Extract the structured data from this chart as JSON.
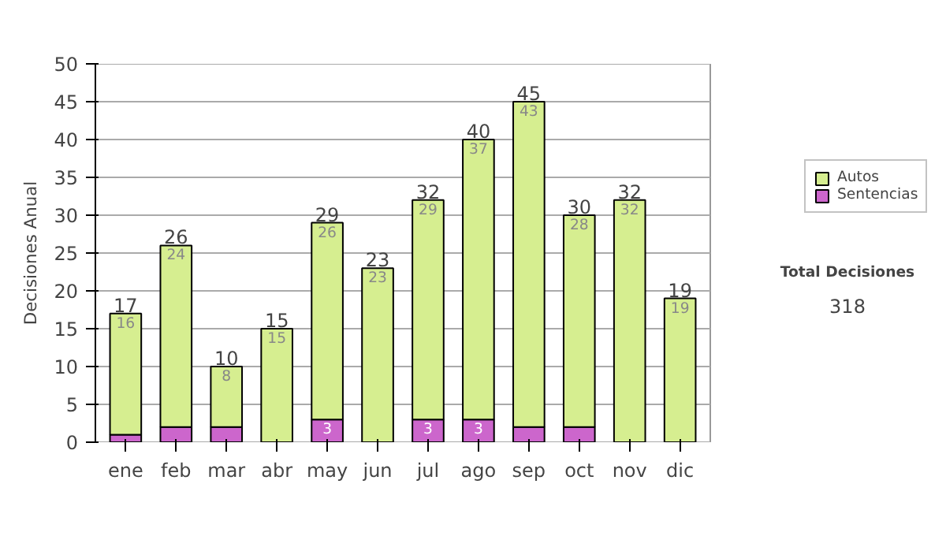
{
  "chart_data": {
    "type": "bar",
    "stacked": true,
    "ylabel": "Decisiones Anual",
    "categories": [
      "ene",
      "feb",
      "mar",
      "abr",
      "may",
      "jun",
      "jul",
      "ago",
      "sep",
      "oct",
      "nov",
      "dic"
    ],
    "series": [
      {
        "name": "Sentencias",
        "color": "#cc66cc",
        "values": [
          1,
          2,
          2,
          0,
          3,
          0,
          3,
          3,
          2,
          2,
          0,
          0
        ],
        "value_labels": [
          null,
          null,
          null,
          null,
          "3",
          null,
          "3",
          "3",
          null,
          null,
          null,
          null
        ]
      },
      {
        "name": "Autos",
        "color": "#d6ee90",
        "values": [
          16,
          24,
          8,
          15,
          26,
          23,
          29,
          37,
          43,
          28,
          32,
          19
        ],
        "value_labels": [
          "16",
          "24",
          "8",
          "15",
          "26",
          "23",
          "29",
          "37",
          "43",
          "28",
          "32",
          "19"
        ]
      }
    ],
    "totals": [
      "17",
      "26",
      "10",
      "15",
      "29",
      "23",
      "32",
      "40",
      "45",
      "30",
      "32",
      "19"
    ],
    "ylim": [
      0,
      50
    ],
    "yticks": [
      0,
      5,
      10,
      15,
      20,
      25,
      30,
      35,
      40,
      45,
      50
    ],
    "grid": "y",
    "legend": "right",
    "annotations": [
      "Total Decisiones",
      "318"
    ]
  }
}
